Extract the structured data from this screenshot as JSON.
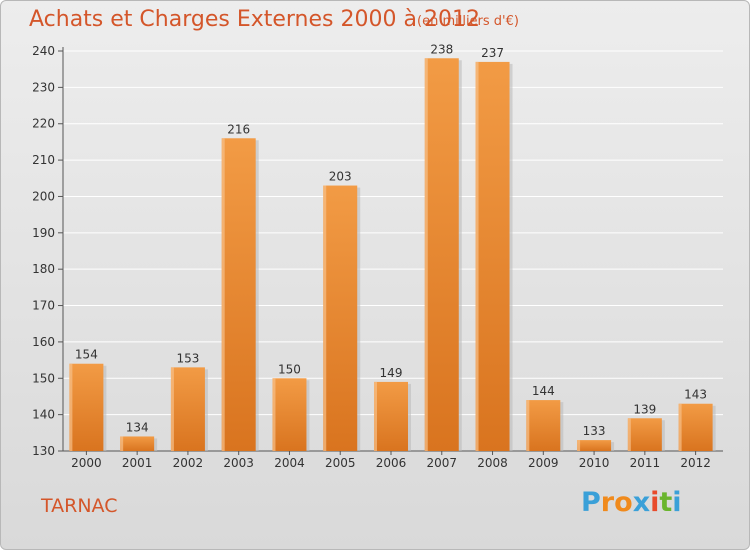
{
  "title": "Achats et Charges Externes 2000 à 2012",
  "subtitle": "(en milliers d'€)",
  "commune": "TARNAC",
  "logo": {
    "letters": [
      "P",
      "r",
      "o",
      "x",
      "i",
      "t",
      "i"
    ],
    "colors": [
      "#3aa0d8",
      "#f08a1c",
      "#f08a1c",
      "#3aa0d8",
      "#e84a2a",
      "#6ab52e",
      "#3aa0d8"
    ]
  },
  "colors": {
    "bar": "#f29b45",
    "bar_dark": "#d9741f",
    "title": "#d4562a",
    "axis": "#555555",
    "grid": "#ffffff"
  },
  "chart_data": {
    "type": "bar",
    "categories": [
      "2000",
      "2001",
      "2002",
      "2003",
      "2004",
      "2005",
      "2006",
      "2007",
      "2008",
      "2009",
      "2010",
      "2011",
      "2012"
    ],
    "values": [
      154,
      134,
      153,
      216,
      150,
      203,
      149,
      238,
      237,
      144,
      133,
      139,
      143
    ],
    "title": "Achats et Charges Externes 2000 à 2012",
    "ylim": [
      130,
      240
    ],
    "yticks": [
      130,
      140,
      150,
      160,
      170,
      180,
      190,
      200,
      210,
      220,
      230,
      240
    ],
    "grid": true
  }
}
